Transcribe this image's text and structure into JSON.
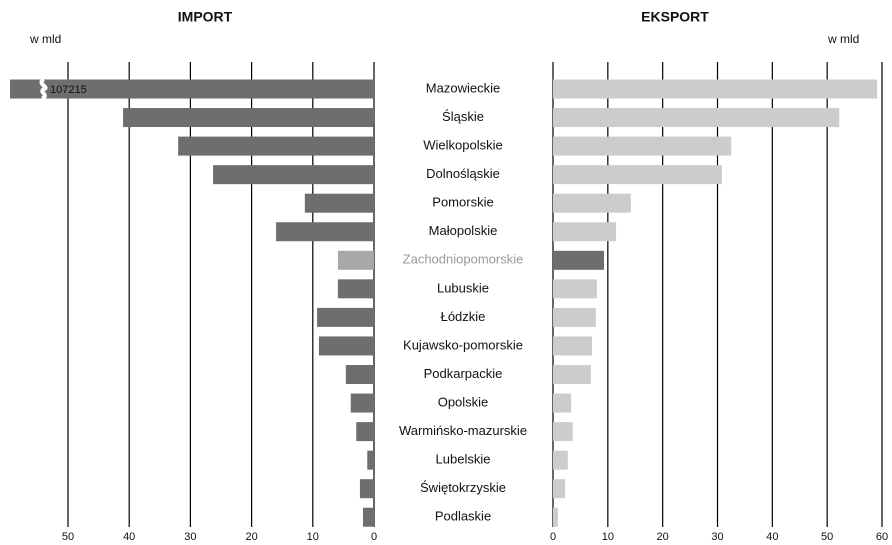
{
  "chart_data": {
    "type": "butterfly",
    "categories": [
      "Mazowieckie",
      "Śląskie",
      "Wielkopolskie",
      "Dolnośląskie",
      "Pomorskie",
      "Małopolskie",
      "Zachodniopomorskie",
      "Lubuskie",
      "Łódzkie",
      "Kujawsko-pomorskie",
      "Podkarpackie",
      "Opolskie",
      "Warmińsko-mazurskie",
      "Lubelskie",
      "Świętokrzyskie",
      "Podlaskie"
    ],
    "highlight_index": 6,
    "highlight_label_color": "#9a9a9a",
    "grid": true,
    "series": [
      {
        "name": "IMPORT",
        "axis_label": "w mld",
        "side": "left",
        "xlim": [
          0,
          50
        ],
        "xticks": [
          50,
          40,
          30,
          20,
          10,
          0
        ],
        "values": [
          107.215,
          41,
          32,
          26.3,
          11.3,
          16,
          5.9,
          5.9,
          9.3,
          9,
          4.6,
          3.8,
          2.9,
          1.1,
          2.3,
          1.8
        ],
        "value_labels": [
          "107215",
          null,
          null,
          null,
          null,
          null,
          null,
          null,
          null,
          null,
          null,
          null,
          null,
          null,
          null,
          null
        ],
        "colors": [
          "#6e6e6e",
          "#6e6e6e",
          "#6e6e6e",
          "#6e6e6e",
          "#6e6e6e",
          "#6e6e6e",
          "#a8a8a8",
          "#6e6e6e",
          "#6e6e6e",
          "#6e6e6e",
          "#6e6e6e",
          "#6e6e6e",
          "#6e6e6e",
          "#6e6e6e",
          "#6e6e6e",
          "#6e6e6e"
        ]
      },
      {
        "name": "EKSPORT",
        "axis_label": "w mld",
        "side": "right",
        "xlim": [
          0,
          60
        ],
        "xticks": [
          0,
          10,
          20,
          30,
          40,
          50,
          60
        ],
        "values": [
          59.1,
          52.2,
          32.5,
          30.8,
          14.2,
          11.5,
          9.3,
          8,
          7.8,
          7.1,
          6.9,
          3.3,
          3.6,
          2.7,
          2.2,
          0.9
        ],
        "colors": [
          "#cccccc",
          "#cccccc",
          "#cccccc",
          "#cccccc",
          "#cccccc",
          "#cccccc",
          "#6e6e6e",
          "#cccccc",
          "#cccccc",
          "#cccccc",
          "#cccccc",
          "#cccccc",
          "#cccccc",
          "#cccccc",
          "#cccccc",
          "#cccccc"
        ]
      }
    ]
  }
}
